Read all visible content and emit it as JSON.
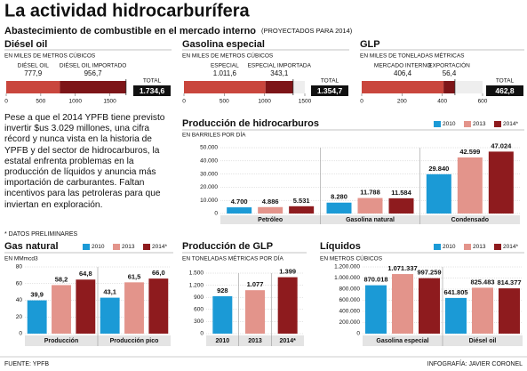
{
  "header": {
    "title": "La actividad hidrocarburífera",
    "subtitle": "Abastecimiento de combustible en el mercado interno",
    "note": "(PROYECTADOS PARA 2014)"
  },
  "body_text": "Pese a que el 2014 YPFB tiene previsto invertir $us 3.029 millones, una cifra récord y nunca vista en la historia de YPFB y del sector de hidrocarburos, la estatal enfrenta problemas en la producción de líquidos y anuncia más importación de carburantes. Faltan incentivos para las petroleras para que inviertan en exploración.",
  "footnote": "* DATOS PRELIMINARES",
  "footer": {
    "source": "FUENTE: YPFB",
    "credit": "INFOGRAFÍA: JAVIER CORONEL"
  },
  "chart_data": [
    {
      "type": "stacked-bar",
      "title": "Diésel oil",
      "unit": "EN MILES DE METROS CÚBICOS",
      "series": [
        {
          "name": "DIÉSEL OIL",
          "color": "#c9463d",
          "values": [
            777.9
          ],
          "value_labels": [
            "777,9"
          ]
        },
        {
          "name": "DIÉSEL OIL IMPORTADO",
          "color": "#7d1518",
          "values": [
            956.7
          ],
          "value_labels": [
            "956,7"
          ]
        }
      ],
      "total": {
        "label": "TOTAL",
        "value": 1734.6,
        "value_label": "1.734,6"
      },
      "xlim": [
        0,
        1750
      ],
      "xticks": [
        0,
        500,
        1000,
        1500
      ]
    },
    {
      "type": "stacked-bar",
      "title": "Gasolina especial",
      "unit": "EN MILES DE METROS CÚBICOS",
      "series": [
        {
          "name": "ESPECIAL",
          "color": "#c9463d",
          "values": [
            1011.6
          ],
          "value_labels": [
            "1.011,6"
          ]
        },
        {
          "name": "ESPECIAL IMPORTADA",
          "color": "#7d1518",
          "values": [
            343.1
          ],
          "value_labels": [
            "343,1"
          ]
        }
      ],
      "total": {
        "label": "TOTAL",
        "value": 1354.7,
        "value_label": "1.354,7"
      },
      "xlim": [
        0,
        1500
      ],
      "xticks": [
        0,
        500,
        1000,
        1500
      ]
    },
    {
      "type": "stacked-bar",
      "title": "GLP",
      "unit": "EN MILES DE TONELADAS MÉTRICAS",
      "series": [
        {
          "name": "MERCADO INTERNO",
          "color": "#c9463d",
          "values": [
            406.4
          ],
          "value_labels": [
            "406,4"
          ]
        },
        {
          "name": "EXPORTACIÓN",
          "color": "#7d1518",
          "values": [
            56.4
          ],
          "value_labels": [
            "56,4"
          ]
        }
      ],
      "total": {
        "label": "TOTAL",
        "value": 462.8,
        "value_label": "462,8"
      },
      "xlim": [
        0,
        600
      ],
      "xticks": [
        0,
        200,
        400,
        600
      ]
    },
    {
      "type": "bar",
      "title": "Producción de hidrocarburos",
      "unit": "EN BARRILES POR DÍA",
      "categories": [
        "Petróleo",
        "Gasolina natural",
        "Condensado"
      ],
      "series": [
        {
          "name": "2010",
          "color": "#1b9ad6",
          "values": [
            4700,
            8280,
            29840
          ],
          "value_labels": [
            "4.700",
            "8.280",
            "29.840"
          ]
        },
        {
          "name": "2013",
          "color": "#e3948b",
          "values": [
            4886,
            11788,
            42599
          ],
          "value_labels": [
            "4.886",
            "11.788",
            "42.599"
          ]
        },
        {
          "name": "2014*",
          "color": "#8e1b1e",
          "values": [
            5531,
            11584,
            47024
          ],
          "value_labels": [
            "5.531",
            "11.584",
            "47.024"
          ]
        }
      ],
      "ylim": [
        0,
        50000
      ],
      "yticks": [
        0,
        {
          "value": 10000,
          "label": "10.000"
        },
        {
          "value": 20000,
          "label": "20.000"
        },
        {
          "value": 30000,
          "label": "30.000"
        },
        {
          "value": 40000,
          "label": "40.000"
        },
        {
          "value": 50000,
          "label": "50.000"
        }
      ],
      "grid": true,
      "legend": "top-right"
    },
    {
      "type": "bar",
      "title": "Gas natural",
      "unit": "EN MMmcd3",
      "categories": [
        "Producción",
        "Producción pico"
      ],
      "series": [
        {
          "name": "2010",
          "color": "#1b9ad6",
          "values": [
            39.9,
            43.1
          ],
          "value_labels": [
            "39,9",
            "43,1"
          ]
        },
        {
          "name": "2013",
          "color": "#e3948b",
          "values": [
            58.2,
            61.5
          ],
          "value_labels": [
            "58,2",
            "61,5"
          ]
        },
        {
          "name": "2014*",
          "color": "#8e1b1e",
          "values": [
            64.8,
            66.0
          ],
          "value_labels": [
            "64,8",
            "66,0"
          ]
        }
      ],
      "ylim": [
        0,
        80
      ],
      "yticks": [
        0,
        20,
        40,
        60,
        80
      ],
      "grid": true,
      "legend": "top-right"
    },
    {
      "type": "bar",
      "title": "Producción de GLP",
      "unit": "EN TONELADAS MÉTRICAS POR DÍA",
      "categories": [
        "2010",
        "2013",
        "2014*"
      ],
      "series": [
        {
          "colors": [
            "#1b9ad6",
            "#e3948b",
            "#8e1b1e"
          ],
          "values": [
            928,
            1077,
            1399
          ],
          "value_labels": [
            "928",
            "1.077",
            "1.399"
          ]
        }
      ],
      "ylim": [
        0,
        1500
      ],
      "yticks": [
        0,
        300,
        600,
        900,
        {
          "value": 1200,
          "label": "1.200"
        },
        {
          "value": 1500,
          "label": "1.500"
        }
      ],
      "grid": true
    },
    {
      "type": "bar",
      "title": "Líquidos",
      "unit": "EN METROS CÚBICOS",
      "categories": [
        "Gasolina especial",
        "Diésel oil"
      ],
      "series": [
        {
          "name": "2010",
          "color": "#1b9ad6",
          "values": [
            870018,
            641805
          ],
          "value_labels": [
            "870.018",
            "641.805"
          ]
        },
        {
          "name": "2013",
          "color": "#e3948b",
          "values": [
            1071337,
            825483
          ],
          "value_labels": [
            "1.071.337",
            "825.483"
          ]
        },
        {
          "name": "2014*",
          "color": "#8e1b1e",
          "values": [
            997259,
            814377
          ],
          "value_labels": [
            "997.259",
            "814.377"
          ]
        }
      ],
      "ylim": [
        0,
        1200000
      ],
      "yticks": [
        0,
        {
          "value": 200000,
          "label": "200.000"
        },
        {
          "value": 400000,
          "label": "400.000"
        },
        {
          "value": 600000,
          "label": "600.000"
        },
        {
          "value": 800000,
          "label": "800.000"
        },
        {
          "value": 1000000,
          "label": "1.000.000"
        },
        {
          "value": 1200000,
          "label": "1.200.000"
        }
      ],
      "grid": true,
      "legend": "top-right"
    }
  ]
}
